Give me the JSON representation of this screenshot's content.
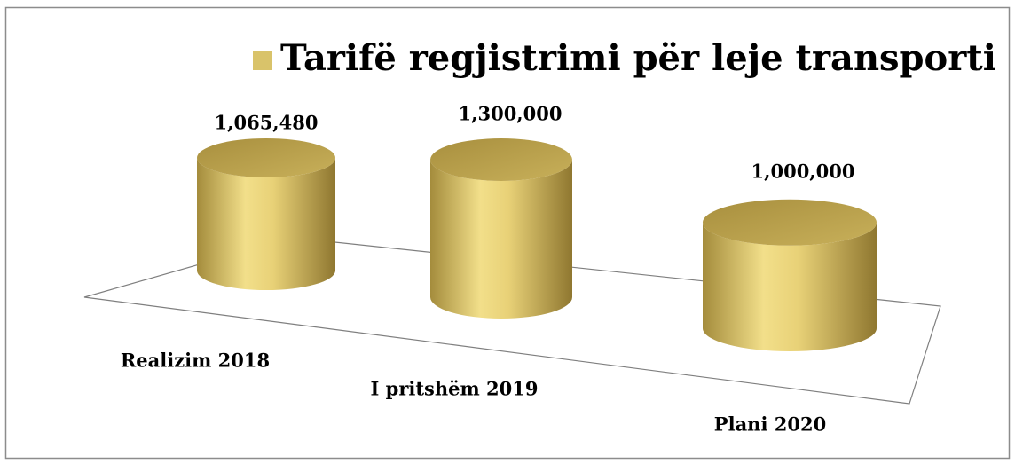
{
  "chart_data": {
    "type": "bar",
    "categories": [
      "Realizim 2018",
      "I pritshëm 2019",
      "Plani 2020"
    ],
    "series": [
      {
        "name": "Tarifë regjistrimi për leje transporti",
        "color": "#d9c36a",
        "values": [
          1065480,
          1300000,
          1000000
        ],
        "value_labels": [
          "1,065,480",
          "1,300,000",
          "1,000,000"
        ]
      }
    ]
  }
}
